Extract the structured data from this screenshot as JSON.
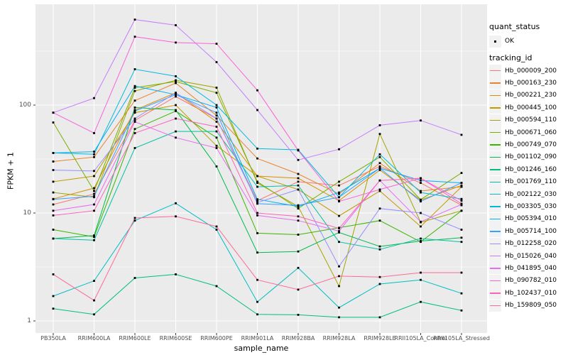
{
  "chart_data": {
    "type": "line",
    "title": "",
    "xlabel": "sample_name",
    "ylabel": "FPKM + 1",
    "x_categories": [
      "PB350LA",
      "RRIM600LA",
      "RRIM600LE",
      "RRIM600SE",
      "RRIM600PE",
      "RRIM901LA",
      "RRIM928BA",
      "RRIM928LA",
      "RRIM928LE",
      "RRII105LA_Control",
      "RRII105LA_Stressed"
    ],
    "y_scale": "log10",
    "y_ticks": [
      1,
      10,
      100
    ],
    "y_minor_ticks": [
      3.162,
      31.62,
      316.2
    ],
    "ylim": [
      0.78,
      850
    ],
    "grid": true,
    "legend_position": "right",
    "point_shape": "small-black-square",
    "series": [
      {
        "name": "Hb_000009_200",
        "color": "#F8766D",
        "values": [
          12,
          15,
          72,
          120,
          75,
          13,
          19.5,
          18,
          27,
          19,
          11.8
        ]
      },
      {
        "name": "Hb_000163_230",
        "color": "#EA8331",
        "values": [
          30,
          33,
          110,
          160,
          80,
          32,
          23,
          15,
          29,
          16,
          17.5
        ]
      },
      {
        "name": "Hb_000221_230",
        "color": "#D89000",
        "values": [
          13.5,
          17,
          90,
          130,
          70,
          22,
          21,
          13,
          25,
          13.2,
          18
        ]
      },
      {
        "name": "Hb_000445_100",
        "color": "#C09B00",
        "values": [
          19.5,
          22,
          85,
          100,
          42,
          22,
          16.5,
          9.4,
          16,
          7.5,
          17.5
        ]
      },
      {
        "name": "Hb_000594_110",
        "color": "#A3A500",
        "values": [
          15.5,
          14,
          135,
          170,
          145,
          19,
          11.5,
          2.1,
          54,
          8.2,
          10.5
        ]
      },
      {
        "name": "Hb_000671_060",
        "color": "#7CAE00",
        "values": [
          69,
          16,
          145,
          165,
          130,
          19.5,
          11,
          19.5,
          33,
          13.3,
          23.5
        ]
      },
      {
        "name": "Hb_000749_070",
        "color": "#39B600",
        "values": [
          7,
          6,
          60,
          88,
          50,
          6.5,
          6.3,
          7.3,
          8.5,
          5.4,
          10.5
        ]
      },
      {
        "name": "Hb_001102_090",
        "color": "#00BB4E",
        "values": [
          5.8,
          6.2,
          95,
          90,
          27,
          4.3,
          4.4,
          6.6,
          4.9,
          5.5,
          5.9
        ]
      },
      {
        "name": "Hb_001246_160",
        "color": "#00BF7D",
        "values": [
          1.3,
          1.15,
          2.5,
          2.7,
          2.1,
          1.15,
          1.14,
          1.08,
          1.08,
          1.5,
          1.25
        ]
      },
      {
        "name": "Hb_001769_110",
        "color": "#00C1A3",
        "values": [
          5.8,
          5.6,
          40,
          57,
          57,
          17.5,
          18,
          5.4,
          4.6,
          5.8,
          5.4
        ]
      },
      {
        "name": "Hb_002122_030",
        "color": "#00BFC4",
        "values": [
          1.7,
          2.35,
          8.5,
          12.3,
          7,
          1.5,
          3.1,
          1.33,
          2.2,
          2.4,
          1.8
        ]
      },
      {
        "name": "Hb_003305_030",
        "color": "#00BADE",
        "values": [
          36,
          35,
          215,
          185,
          100,
          39.5,
          38.5,
          14,
          35,
          15.5,
          13.5
        ]
      },
      {
        "name": "Hb_005394_010",
        "color": "#00B0F6",
        "values": [
          36,
          37,
          150,
          125,
          95,
          13.4,
          11.5,
          15.5,
          26,
          20,
          19
        ]
      },
      {
        "name": "Hb_005714_100",
        "color": "#35A2FF",
        "values": [
          13.4,
          14.3,
          88,
          125,
          85,
          12.2,
          11.8,
          14,
          26,
          12.8,
          19
        ]
      },
      {
        "name": "Hb_012258_020",
        "color": "#9590FF",
        "values": [
          25,
          24.5,
          75,
          130,
          75,
          12.5,
          16.5,
          3.2,
          11,
          10,
          7
        ]
      },
      {
        "name": "Hb_015026_040",
        "color": "#C77CFF",
        "values": [
          85,
          116,
          620,
          550,
          250,
          90,
          31,
          39,
          65,
          72,
          53
        ]
      },
      {
        "name": "Hb_041895_040",
        "color": "#E76BF3",
        "values": [
          10.5,
          12,
          70,
          50,
          40,
          9.5,
          8.5,
          6.8,
          20,
          8.3,
          12
        ]
      },
      {
        "name": "Hb_090782_010",
        "color": "#FA62DB",
        "values": [
          85,
          55,
          430,
          380,
          370,
          137,
          38,
          12.8,
          16.5,
          21,
          13
        ]
      },
      {
        "name": "Hb_102437_010",
        "color": "#FF62BC",
        "values": [
          9.5,
          10.5,
          55,
          75,
          63,
          10,
          9.3,
          7.2,
          20,
          21,
          12.2
        ]
      },
      {
        "name": "Hb_159809_050",
        "color": "#FF6A98",
        "values": [
          2.7,
          1.55,
          9,
          9.3,
          7.5,
          2.4,
          1.95,
          2.6,
          2.55,
          2.8,
          2.8
        ]
      }
    ]
  },
  "legend": {
    "quant_status": {
      "title": "quant_status",
      "items": [
        {
          "label": "OK",
          "glyph": "black-point"
        }
      ]
    },
    "tracking_id": {
      "title": "tracking_id"
    }
  },
  "colors": {
    "panel_bg": "#EBEBEB",
    "grid": "#FFFFFF",
    "key_bg": "#F2F2F2",
    "tick": "#333333",
    "axis_text": "#4D4D4D",
    "point": "#000000"
  }
}
